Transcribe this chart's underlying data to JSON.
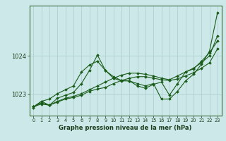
{
  "xlabel": "Graphe pression niveau de la mer (hPa)",
  "bg_color": "#cce8e8",
  "grid_color": "#aacccc",
  "line_color": "#1a5c1a",
  "yticks": [
    1023,
    1024
  ],
  "ylim": [
    1022.45,
    1025.3
  ],
  "xlim": [
    -0.5,
    23.5
  ],
  "xticks": [
    0,
    1,
    2,
    3,
    4,
    5,
    6,
    7,
    8,
    9,
    10,
    11,
    12,
    13,
    14,
    15,
    16,
    17,
    18,
    19,
    20,
    21,
    22,
    23
  ],
  "series": [
    [
      1022.65,
      1022.82,
      1022.72,
      1022.9,
      1022.98,
      1023.05,
      1023.28,
      1023.62,
      1024.02,
      1023.62,
      1023.42,
      1023.35,
      1023.35,
      1023.28,
      1023.22,
      1023.28,
      1022.88,
      1022.88,
      1023.08,
      1023.35,
      1023.52,
      1023.78,
      1024.12,
      1025.12
    ],
    [
      1022.68,
      1022.78,
      1022.72,
      1022.82,
      1022.9,
      1022.95,
      1023.02,
      1023.12,
      1023.22,
      1023.32,
      1023.42,
      1023.5,
      1023.55,
      1023.55,
      1023.52,
      1023.48,
      1023.42,
      1023.38,
      1023.48,
      1023.58,
      1023.68,
      1023.82,
      1024.0,
      1024.52
    ],
    [
      1022.68,
      1022.75,
      1022.72,
      1022.8,
      1022.88,
      1022.92,
      1022.98,
      1023.08,
      1023.14,
      1023.18,
      1023.28,
      1023.36,
      1023.42,
      1023.46,
      1023.46,
      1023.42,
      1023.38,
      1023.36,
      1023.4,
      1023.48,
      1023.56,
      1023.68,
      1023.82,
      1024.18
    ],
    [
      1022.68,
      1022.82,
      1022.88,
      1023.02,
      1023.12,
      1023.22,
      1023.58,
      1023.76,
      1023.86,
      1023.62,
      1023.46,
      1023.36,
      1023.35,
      1023.22,
      1023.16,
      1023.26,
      1023.32,
      1022.98,
      1023.28,
      1023.58,
      1023.66,
      1023.86,
      1024.08,
      1024.38
    ]
  ]
}
